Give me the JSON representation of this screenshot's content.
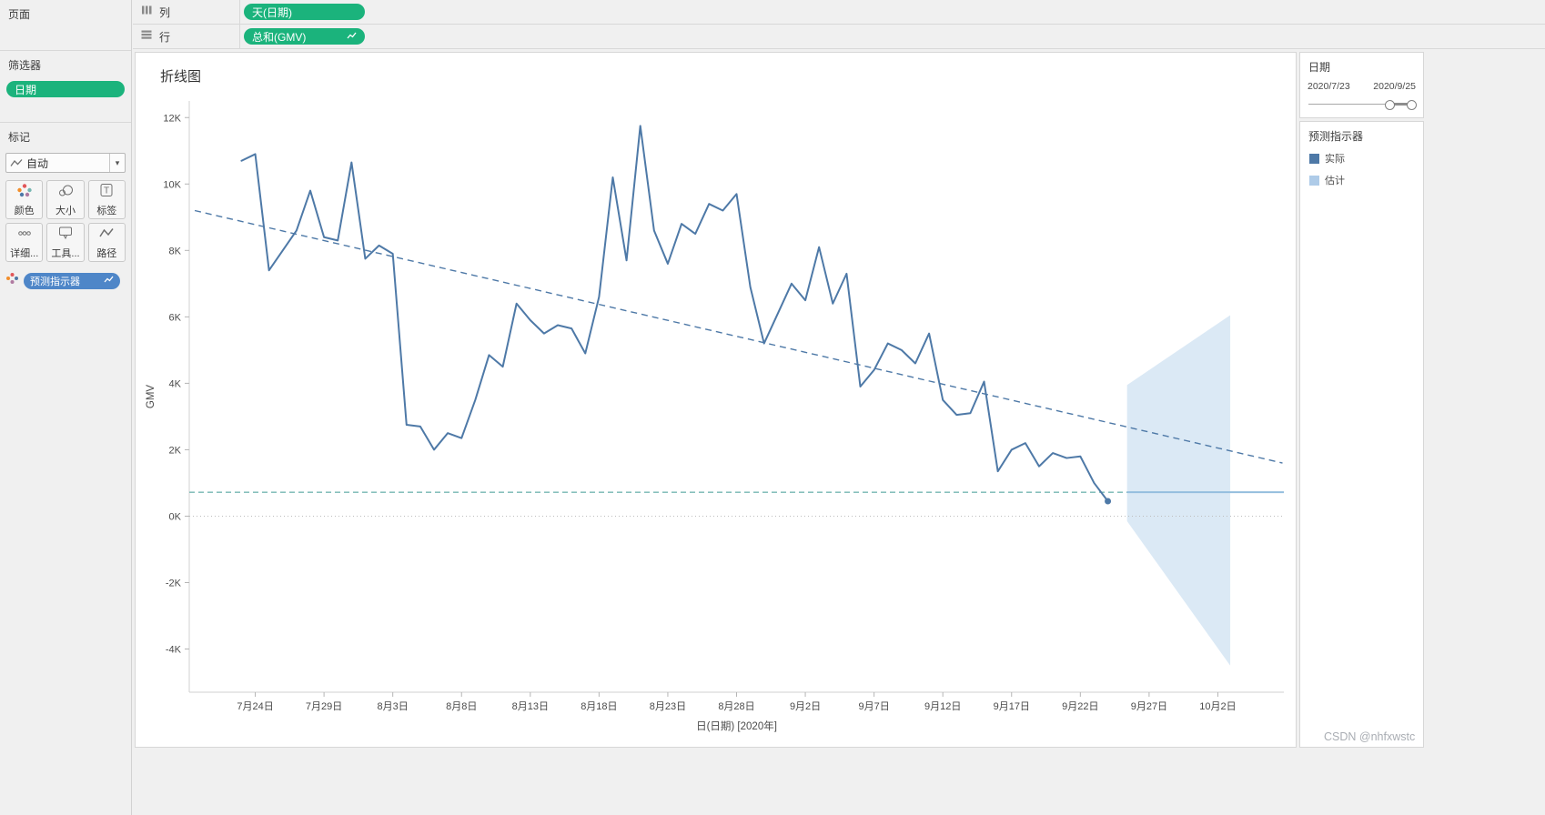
{
  "app": {
    "watermark": "CSDN @nhfxwstc"
  },
  "sidebar": {
    "pages": {
      "title": "页面"
    },
    "filters": {
      "title": "筛选器",
      "pills": [
        {
          "label": "日期",
          "color": "#1bb37c"
        }
      ]
    },
    "marks": {
      "title": "标记",
      "mark_type": "自动",
      "buttons": [
        {
          "label": "颜色"
        },
        {
          "label": "大小"
        },
        {
          "label": "标签"
        },
        {
          "label": "详细..."
        },
        {
          "label": "工具..."
        },
        {
          "label": "路径"
        }
      ],
      "pills": [
        {
          "label": "预测指示器",
          "color": "#4e86c8"
        }
      ]
    }
  },
  "shelves": {
    "columns": {
      "label": "列",
      "pills": [
        {
          "label": "天(日期)",
          "color": "#1bb37c"
        }
      ]
    },
    "rows": {
      "label": "行",
      "pills": [
        {
          "label": "总和(GMV)",
          "color": "#1bb37c"
        }
      ]
    }
  },
  "right_panel": {
    "date_filter": {
      "title": "日期",
      "start": "2020/7/23",
      "end": "2020/9/25"
    },
    "legend": {
      "title": "预测指示器",
      "items": [
        {
          "label": "实际",
          "color": "#4e79a7"
        },
        {
          "label": "估计",
          "color": "#aecbe8"
        }
      ]
    }
  },
  "chart_data": {
    "type": "line",
    "title": "折线图",
    "xlabel": "日(日期) [2020年]",
    "ylabel": "GMV",
    "y_unit": "K",
    "ylim": [
      -5.3,
      12.5
    ],
    "yticks": [
      -4,
      -2,
      0,
      2,
      4,
      6,
      8,
      10,
      12
    ],
    "x_day_range": [
      -3.8,
      75.8
    ],
    "x_start_date": "2020/7/23",
    "xticks": [
      {
        "day": 1,
        "label": "7月24日"
      },
      {
        "day": 6,
        "label": "7月29日"
      },
      {
        "day": 11,
        "label": "8月3日"
      },
      {
        "day": 16,
        "label": "8月8日"
      },
      {
        "day": 21,
        "label": "8月13日"
      },
      {
        "day": 26,
        "label": "8月18日"
      },
      {
        "day": 31,
        "label": "8月23日"
      },
      {
        "day": 36,
        "label": "8月28日"
      },
      {
        "day": 41,
        "label": "9月2日"
      },
      {
        "day": 46,
        "label": "9月7日"
      },
      {
        "day": 51,
        "label": "9月12日"
      },
      {
        "day": 56,
        "label": "9月17日"
      },
      {
        "day": 61,
        "label": "9月22日"
      },
      {
        "day": 66,
        "label": "9月27日"
      },
      {
        "day": 71,
        "label": "10月2日"
      }
    ],
    "series": [
      {
        "name": "实际",
        "color": "#4e79a7",
        "start_day": 0,
        "end_marker": true,
        "values": [
          10.7,
          10.9,
          7.4,
          8.0,
          8.6,
          9.8,
          8.4,
          8.3,
          10.65,
          7.75,
          8.15,
          7.9,
          2.75,
          2.7,
          2.0,
          2.5,
          2.35,
          3.5,
          4.85,
          4.5,
          6.4,
          5.9,
          5.5,
          5.75,
          5.65,
          4.9,
          6.6,
          10.2,
          7.7,
          11.75,
          8.6,
          7.6,
          8.8,
          8.5,
          9.4,
          9.2,
          9.7,
          6.9,
          5.2,
          6.1,
          7.0,
          6.5,
          8.1,
          6.4,
          7.3,
          3.9,
          4.4,
          5.2,
          5.0,
          4.6,
          5.5,
          3.5,
          3.05,
          3.1,
          4.05,
          1.35,
          2.0,
          2.2,
          1.5,
          1.9,
          1.75,
          1.8,
          1.0,
          0.45
        ]
      }
    ],
    "trend_line": {
      "color": "#4e79a7",
      "dash": [
        7,
        5
      ],
      "start": {
        "day": -3.4,
        "value": 9.2
      },
      "end": {
        "day": 75.7,
        "value": 1.6
      }
    },
    "reference_line": {
      "value": 0.72,
      "color": "#76b7b2",
      "dash": [
        6,
        4
      ]
    },
    "zero_line": {
      "value": 0,
      "color": "#bdbdbd"
    },
    "forecast": {
      "name": "估计",
      "estimate_value": 0.72,
      "line_color": "#94bede",
      "band_color": "#dbe9f5",
      "band": {
        "start_day": 64.4,
        "end_day": 71.9,
        "upper_start": 3.95,
        "upper_end": 6.05,
        "lower_start": -0.15,
        "lower_end": -4.5
      },
      "estimate_line": {
        "start_day": 64.4,
        "end_day": 75.8
      }
    }
  }
}
